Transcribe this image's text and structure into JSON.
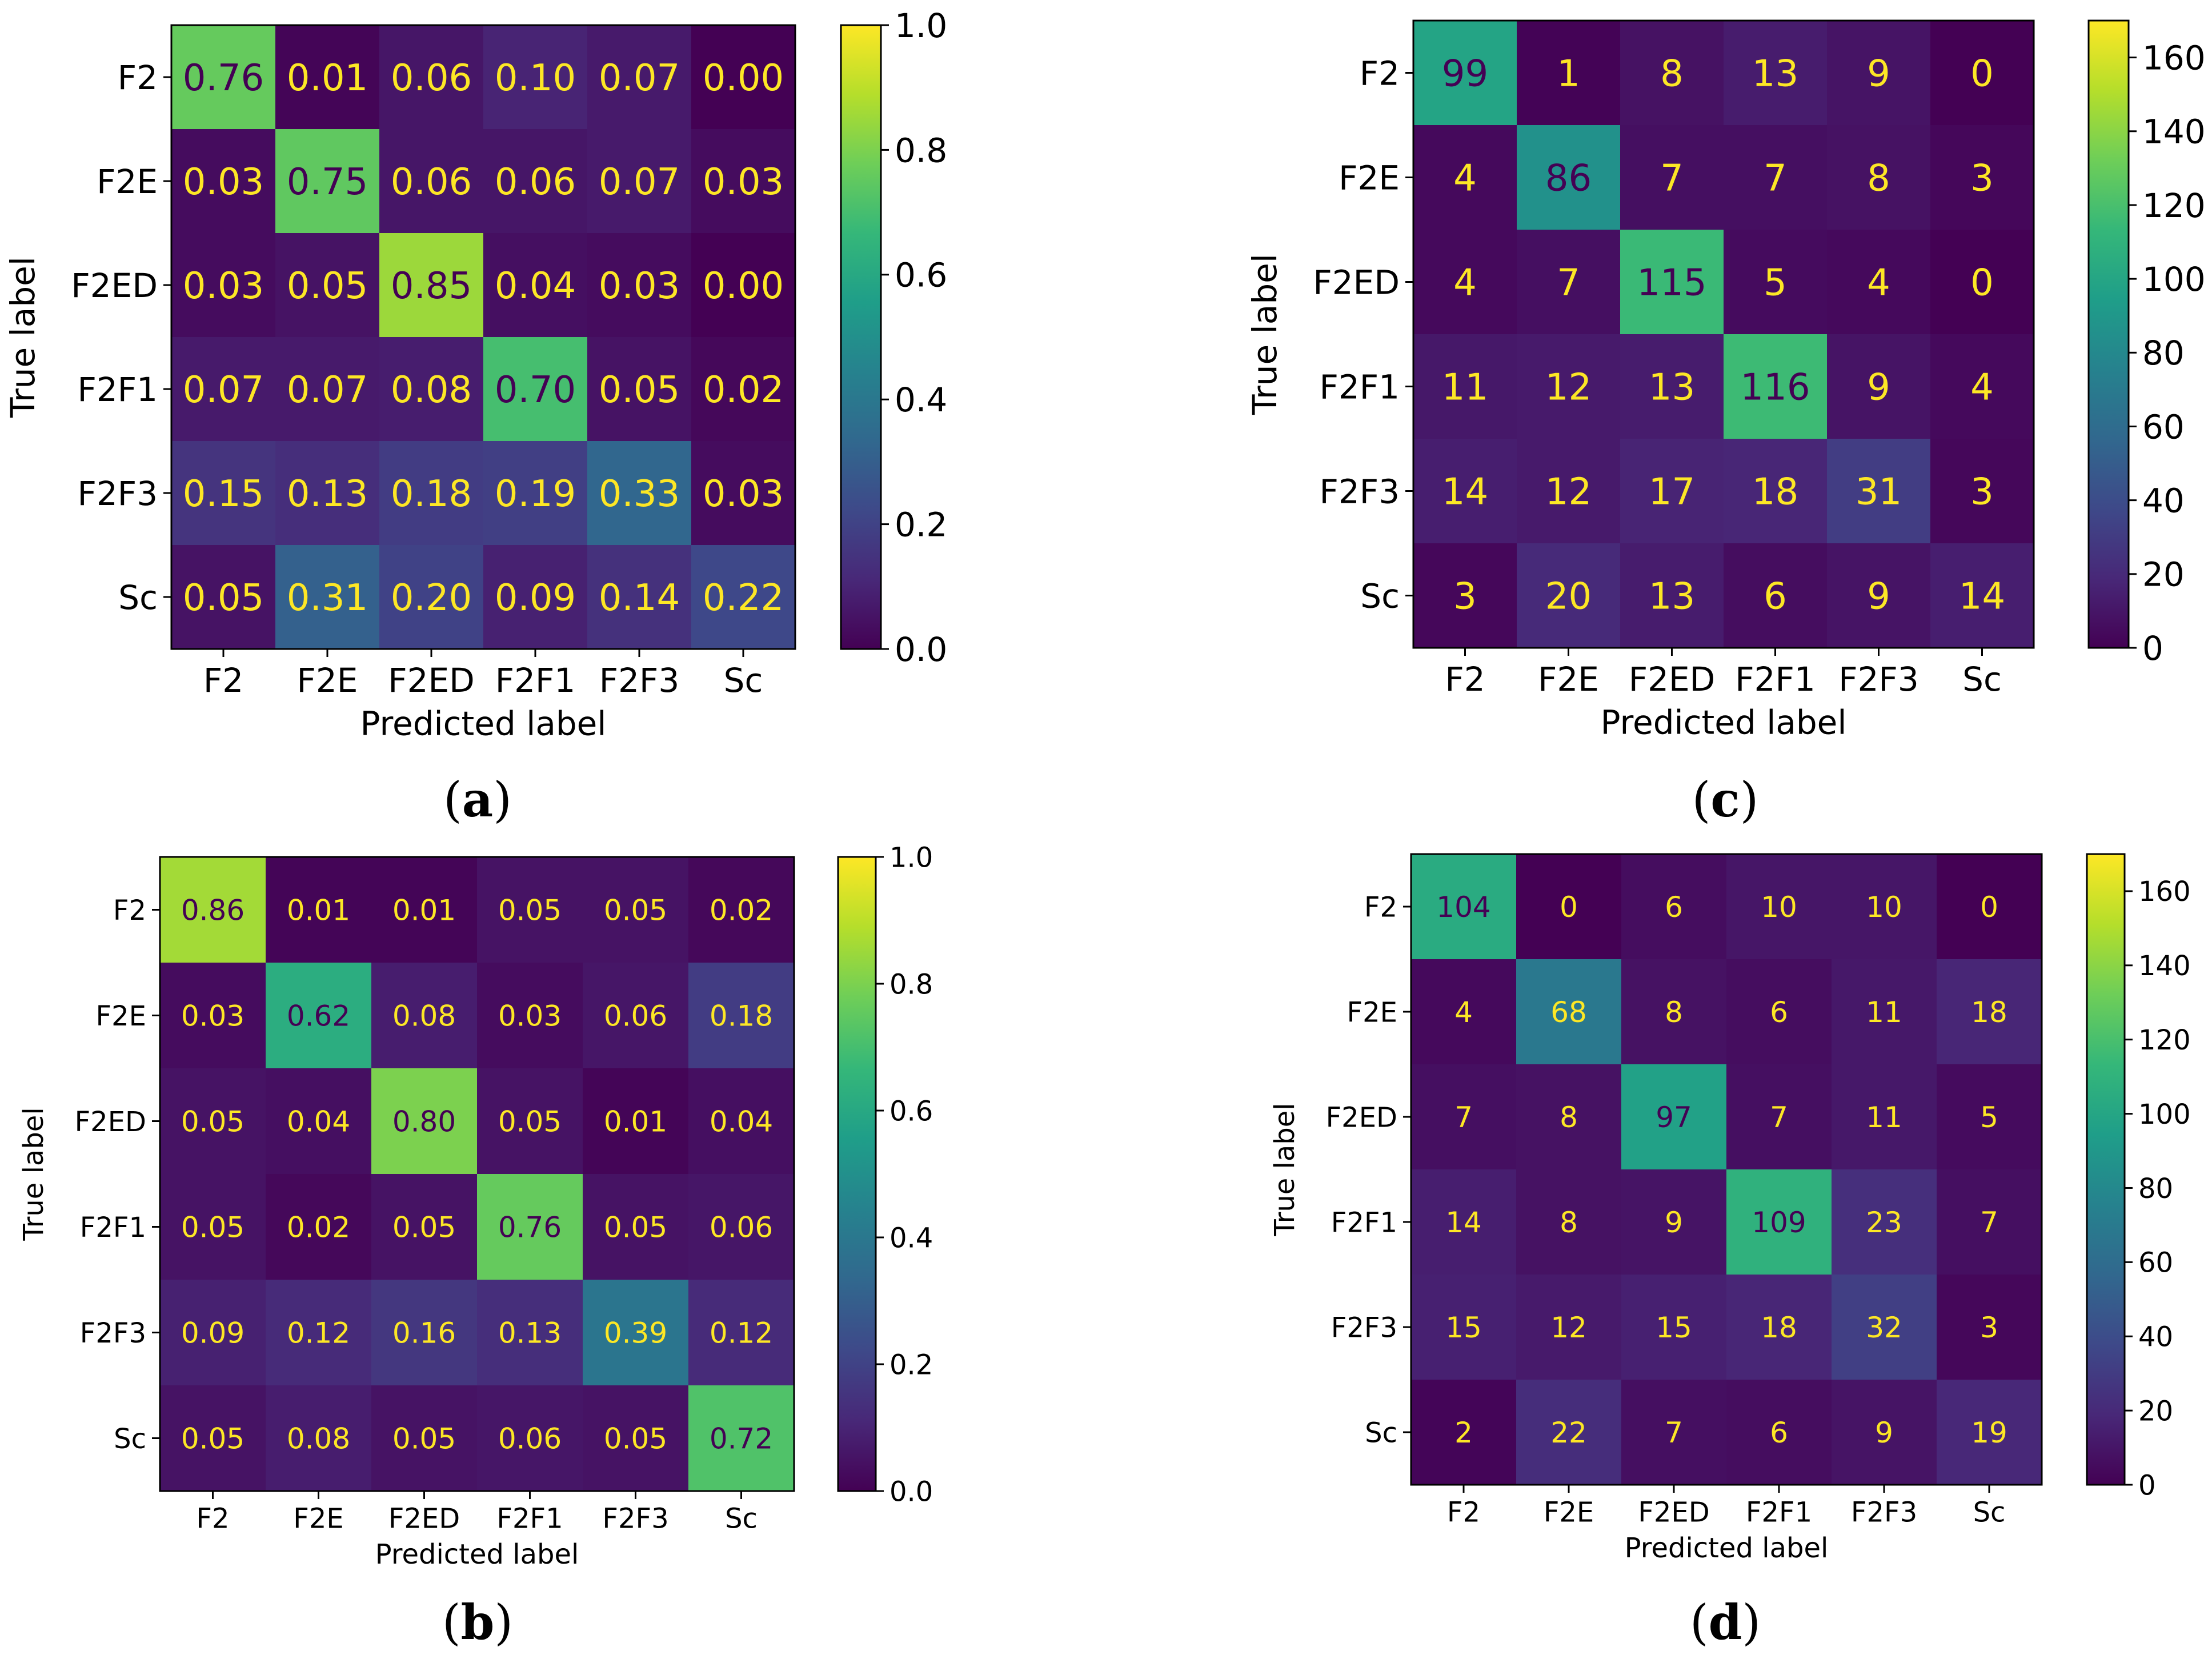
{
  "colors": {
    "viridis_stops": [
      "#440154",
      "#482878",
      "#3e4989",
      "#31688e",
      "#26828e",
      "#1f9e89",
      "#35b779",
      "#6ece58",
      "#b5de2b",
      "#fde725"
    ],
    "text_light": "#fde725",
    "text_dark": "#440154"
  },
  "chart_data": [
    {
      "type": "heatmap",
      "panel": "a",
      "caption_letter": "a",
      "xlabel": "Predicted label",
      "ylabel": "True label",
      "categories": [
        "F2",
        "F2E",
        "F2ED",
        "F2F1",
        "F2F3",
        "Sc"
      ],
      "colorbar_ticks": [
        "0.0",
        "0.2",
        "0.4",
        "0.6",
        "0.8",
        "1.0"
      ],
      "vmin": 0.0,
      "vmax": 1.0,
      "matrix": [
        [
          "0.76",
          "0.01",
          "0.06",
          "0.10",
          "0.07",
          "0.00"
        ],
        [
          "0.03",
          "0.75",
          "0.06",
          "0.06",
          "0.07",
          "0.03"
        ],
        [
          "0.03",
          "0.05",
          "0.85",
          "0.04",
          "0.03",
          "0.00"
        ],
        [
          "0.07",
          "0.07",
          "0.08",
          "0.70",
          "0.05",
          "0.02"
        ],
        [
          "0.15",
          "0.13",
          "0.18",
          "0.19",
          "0.33",
          "0.03"
        ],
        [
          "0.05",
          "0.31",
          "0.20",
          "0.09",
          "0.14",
          "0.22"
        ]
      ]
    },
    {
      "type": "heatmap",
      "panel": "c",
      "caption_letter": "c",
      "xlabel": "Predicted label",
      "ylabel": "True label",
      "categories": [
        "F2",
        "F2E",
        "F2ED",
        "F2F1",
        "F2F3",
        "Sc"
      ],
      "colorbar_ticks": [
        "0",
        "20",
        "40",
        "60",
        "80",
        "100",
        "120",
        "140",
        "160"
      ],
      "vmin": 0,
      "vmax": 170,
      "matrix": [
        [
          "99",
          "1",
          "8",
          "13",
          "9",
          "0"
        ],
        [
          "4",
          "86",
          "7",
          "7",
          "8",
          "3"
        ],
        [
          "4",
          "7",
          "115",
          "5",
          "4",
          "0"
        ],
        [
          "11",
          "12",
          "13",
          "116",
          "9",
          "4"
        ],
        [
          "14",
          "12",
          "17",
          "18",
          "31",
          "3"
        ],
        [
          "3",
          "20",
          "13",
          "6",
          "9",
          "14"
        ]
      ]
    },
    {
      "type": "heatmap",
      "panel": "b",
      "caption_letter": "b",
      "xlabel": "Predicted label",
      "ylabel": "True label",
      "categories": [
        "F2",
        "F2E",
        "F2ED",
        "F2F1",
        "F2F3",
        "Sc"
      ],
      "colorbar_ticks": [
        "0.0",
        "0.2",
        "0.4",
        "0.6",
        "0.8",
        "1.0"
      ],
      "vmin": 0.0,
      "vmax": 1.0,
      "matrix": [
        [
          "0.86",
          "0.01",
          "0.01",
          "0.05",
          "0.05",
          "0.02"
        ],
        [
          "0.03",
          "0.62",
          "0.08",
          "0.03",
          "0.06",
          "0.18"
        ],
        [
          "0.05",
          "0.04",
          "0.80",
          "0.05",
          "0.01",
          "0.04"
        ],
        [
          "0.05",
          "0.02",
          "0.05",
          "0.76",
          "0.05",
          "0.06"
        ],
        [
          "0.09",
          "0.12",
          "0.16",
          "0.13",
          "0.39",
          "0.12"
        ],
        [
          "0.05",
          "0.08",
          "0.05",
          "0.06",
          "0.05",
          "0.72"
        ]
      ]
    },
    {
      "type": "heatmap",
      "panel": "d",
      "caption_letter": "d",
      "xlabel": "Predicted label",
      "ylabel": "True label",
      "categories": [
        "F2",
        "F2E",
        "F2ED",
        "F2F1",
        "F2F3",
        "Sc"
      ],
      "colorbar_ticks": [
        "0",
        "20",
        "40",
        "60",
        "80",
        "100",
        "120",
        "140",
        "160"
      ],
      "vmin": 0,
      "vmax": 170,
      "matrix": [
        [
          "104",
          "0",
          "6",
          "10",
          "10",
          "0"
        ],
        [
          "4",
          "68",
          "8",
          "6",
          "11",
          "18"
        ],
        [
          "7",
          "8",
          "97",
          "7",
          "11",
          "5"
        ],
        [
          "14",
          "8",
          "9",
          "109",
          "23",
          "7"
        ],
        [
          "15",
          "12",
          "15",
          "18",
          "32",
          "3"
        ],
        [
          "2",
          "22",
          "7",
          "6",
          "9",
          "19"
        ]
      ]
    }
  ]
}
